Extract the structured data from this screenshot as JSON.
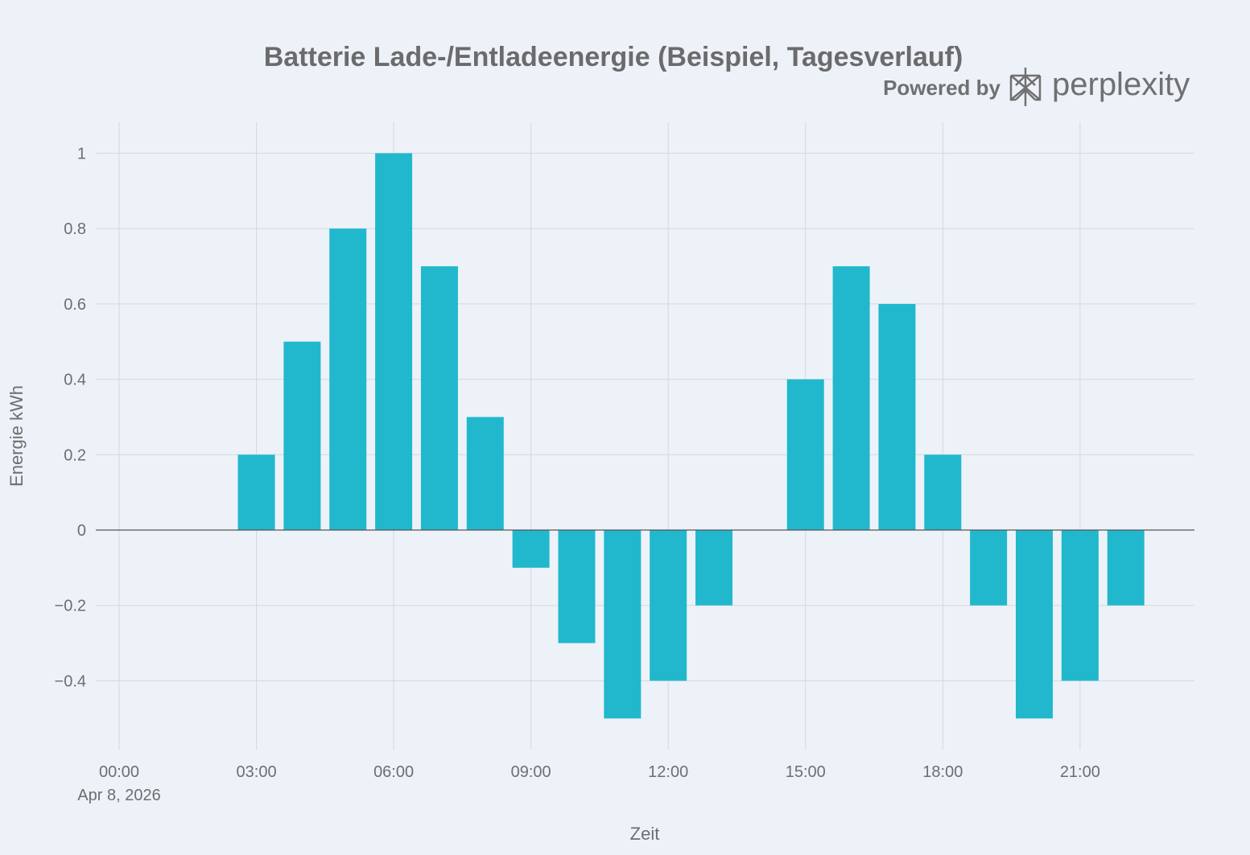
{
  "chart_data": {
    "type": "bar",
    "title": "Batterie Lade-/Entladeenergie (Beispiel, Tagesverlauf)",
    "xlabel": "Zeit",
    "ylabel": "Energie kWh",
    "date_label": "Apr 8, 2026",
    "x_tick_labels": [
      "00:00",
      "03:00",
      "06:00",
      "09:00",
      "12:00",
      "15:00",
      "18:00",
      "21:00"
    ],
    "y_tick_labels": [
      "1",
      "0.8",
      "0.6",
      "0.4",
      "0.2",
      "0",
      "−0.2",
      "−0.4"
    ],
    "y_tick_values": [
      1,
      0.8,
      0.6,
      0.4,
      0.2,
      0,
      -0.2,
      -0.4
    ],
    "ylim": [
      -0.57,
      1.08
    ],
    "xlim_hours": [
      0,
      23.5
    ],
    "categories": [
      "00:00",
      "01:00",
      "02:00",
      "03:00",
      "04:00",
      "05:00",
      "06:00",
      "07:00",
      "08:00",
      "09:00",
      "10:00",
      "11:00",
      "12:00",
      "13:00",
      "14:00",
      "15:00",
      "16:00",
      "17:00",
      "18:00",
      "19:00",
      "20:00",
      "21:00",
      "22:00",
      "23:00"
    ],
    "series": [
      {
        "name": "Energie kWh",
        "color": "#21b8cd",
        "values": [
          0,
          0,
          0,
          0.2,
          0.5,
          0.8,
          1.0,
          0.7,
          0.3,
          -0.1,
          -0.3,
          -0.5,
          -0.4,
          -0.2,
          0,
          0.4,
          0.7,
          0.6,
          0.2,
          -0.2,
          -0.5,
          -0.4,
          -0.2,
          0
        ]
      }
    ],
    "grid": true
  },
  "branding": {
    "powered_by": "Powered by",
    "name": "perplexity",
    "color": "#707070"
  }
}
